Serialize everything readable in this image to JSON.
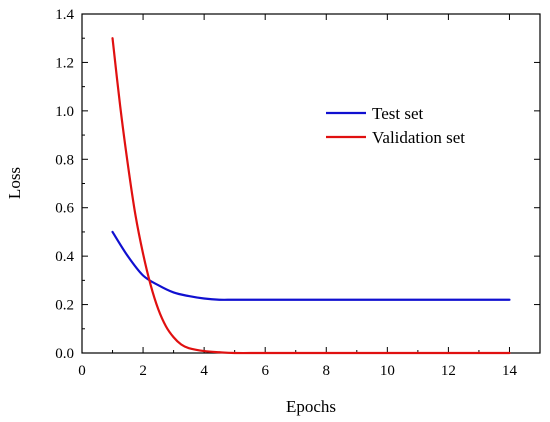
{
  "chart_data": {
    "type": "line",
    "xlabel": "Epochs",
    "ylabel": "Loss",
    "xlim": [
      0,
      15
    ],
    "ylim": [
      0.0,
      1.4
    ],
    "xticks": [
      0,
      2,
      4,
      6,
      8,
      10,
      12,
      14
    ],
    "yticks": [
      0.0,
      0.2,
      0.4,
      0.6,
      0.8,
      1.0,
      1.2,
      1.4
    ],
    "xtick_labels": [
      "0",
      "2",
      "4",
      "6",
      "8",
      "10",
      "12",
      "14"
    ],
    "ytick_labels": [
      "0.0",
      "0.2",
      "0.4",
      "0.6",
      "0.8",
      "1.0",
      "1.2",
      "1.4"
    ],
    "grid": false,
    "legend_position": "upper-right",
    "series": [
      {
        "name": "Test set",
        "color": "#1010d0",
        "x": [
          1,
          1.5,
          2,
          2.5,
          3,
          3.5,
          4,
          4.5,
          5,
          6,
          7,
          8,
          9,
          10,
          11,
          12,
          13,
          14
        ],
        "y": [
          0.5,
          0.4,
          0.32,
          0.28,
          0.25,
          0.235,
          0.225,
          0.22,
          0.22,
          0.22,
          0.22,
          0.22,
          0.22,
          0.22,
          0.22,
          0.22,
          0.22,
          0.22
        ]
      },
      {
        "name": "Validation set",
        "color": "#e01010",
        "x": [
          1,
          1.25,
          1.5,
          1.75,
          2,
          2.25,
          2.5,
          2.75,
          3,
          3.25,
          3.5,
          4,
          4.5,
          5,
          6,
          8,
          10,
          12,
          14
        ],
        "y": [
          1.3,
          1.02,
          0.78,
          0.57,
          0.41,
          0.28,
          0.18,
          0.11,
          0.065,
          0.035,
          0.02,
          0.008,
          0.003,
          0.0,
          0.0,
          0.0,
          0.0,
          0.0,
          0.0
        ]
      }
    ]
  }
}
